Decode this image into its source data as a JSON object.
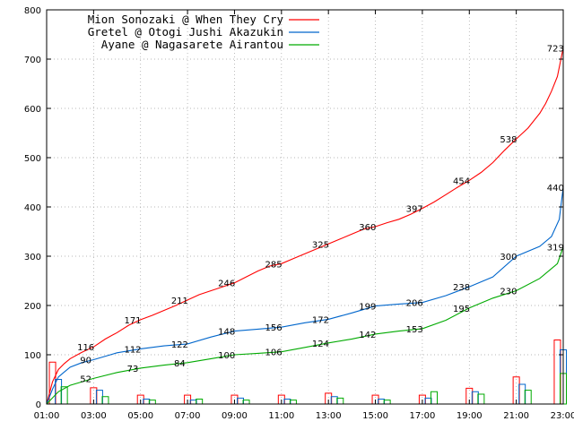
{
  "chart_data": {
    "type": "line",
    "grid": true,
    "legend_placement": "top-left",
    "xlim": [
      "01:00",
      "23:00"
    ],
    "ylim": [
      0,
      800
    ],
    "x_ticks": [
      "01:00",
      "03:00",
      "05:00",
      "07:00",
      "09:00",
      "11:00",
      "13:00",
      "15:00",
      "17:00",
      "19:00",
      "21:00",
      "23:00"
    ],
    "y_ticks": [
      0,
      100,
      200,
      300,
      400,
      500,
      600,
      700,
      800
    ],
    "series": [
      {
        "name": "Mion Sonozaki @ When They Cry",
        "color": "#ff0000",
        "cumulative": [
          [
            "01:00",
            0
          ],
          [
            "01:15",
            45
          ],
          [
            "01:30",
            70
          ],
          [
            "01:45",
            82
          ],
          [
            "02:00",
            92
          ],
          [
            "02:30",
            105
          ],
          [
            "03:00",
            116
          ],
          [
            "03:30",
            132
          ],
          [
            "04:00",
            145
          ],
          [
            "04:30",
            160
          ],
          [
            "05:00",
            171
          ],
          [
            "05:30",
            180
          ],
          [
            "06:00",
            190
          ],
          [
            "06:30",
            200
          ],
          [
            "07:00",
            211
          ],
          [
            "07:30",
            222
          ],
          [
            "08:00",
            230
          ],
          [
            "08:30",
            238
          ],
          [
            "09:00",
            246
          ],
          [
            "09:30",
            258
          ],
          [
            "10:00",
            270
          ],
          [
            "10:30",
            280
          ],
          [
            "11:00",
            285
          ],
          [
            "11:30",
            295
          ],
          [
            "12:00",
            305
          ],
          [
            "12:30",
            315
          ],
          [
            "13:00",
            325
          ],
          [
            "13:30",
            335
          ],
          [
            "14:00",
            345
          ],
          [
            "14:30",
            355
          ],
          [
            "15:00",
            360
          ],
          [
            "15:30",
            368
          ],
          [
            "16:00",
            375
          ],
          [
            "16:30",
            385
          ],
          [
            "17:00",
            397
          ],
          [
            "17:30",
            410
          ],
          [
            "18:00",
            425
          ],
          [
            "18:30",
            440
          ],
          [
            "19:00",
            454
          ],
          [
            "19:30",
            470
          ],
          [
            "20:00",
            490
          ],
          [
            "20:30",
            515
          ],
          [
            "21:00",
            538
          ],
          [
            "21:30",
            560
          ],
          [
            "22:00",
            590
          ],
          [
            "22:15",
            610
          ],
          [
            "22:30",
            635
          ],
          [
            "22:45",
            665
          ],
          [
            "23:00",
            723
          ]
        ],
        "labels": [
          [
            "02:40",
            116,
            "116"
          ],
          [
            "04:40",
            171,
            "171"
          ],
          [
            "06:40",
            211,
            "211"
          ],
          [
            "08:40",
            246,
            "246"
          ],
          [
            "10:40",
            285,
            "285"
          ],
          [
            "12:40",
            325,
            "325"
          ],
          [
            "14:40",
            360,
            "360"
          ],
          [
            "16:40",
            397,
            "397"
          ],
          [
            "18:40",
            454,
            "454"
          ],
          [
            "20:40",
            538,
            "538"
          ],
          [
            "22:40",
            723,
            "723"
          ]
        ],
        "bars": [
          [
            "01:15",
            85
          ],
          [
            "03:00",
            33
          ],
          [
            "05:00",
            18
          ],
          [
            "07:00",
            18
          ],
          [
            "09:00",
            18
          ],
          [
            "11:00",
            18
          ],
          [
            "13:00",
            22
          ],
          [
            "15:00",
            18
          ],
          [
            "17:00",
            18
          ],
          [
            "19:00",
            32
          ],
          [
            "21:00",
            55
          ],
          [
            "22:45",
            130
          ]
        ]
      },
      {
        "name": "Gretel @ Otogi Jushi Akazukin",
        "color": "#0066cc",
        "cumulative": [
          [
            "01:00",
            0
          ],
          [
            "01:15",
            30
          ],
          [
            "01:30",
            55
          ],
          [
            "01:45",
            65
          ],
          [
            "02:00",
            75
          ],
          [
            "02:30",
            84
          ],
          [
            "03:00",
            90
          ],
          [
            "04:00",
            104
          ],
          [
            "05:00",
            112
          ],
          [
            "06:00",
            118
          ],
          [
            "07:00",
            122
          ],
          [
            "08:00",
            136
          ],
          [
            "09:00",
            148
          ],
          [
            "10:00",
            152
          ],
          [
            "11:00",
            156
          ],
          [
            "12:00",
            165
          ],
          [
            "13:00",
            172
          ],
          [
            "14:00",
            185
          ],
          [
            "15:00",
            199
          ],
          [
            "16:00",
            203
          ],
          [
            "17:00",
            206
          ],
          [
            "18:00",
            220
          ],
          [
            "19:00",
            238
          ],
          [
            "20:00",
            258
          ],
          [
            "21:00",
            300
          ],
          [
            "22:00",
            320
          ],
          [
            "22:30",
            340
          ],
          [
            "22:50",
            375
          ],
          [
            "23:00",
            440
          ]
        ],
        "labels": [
          [
            "02:40",
            90,
            "90"
          ],
          [
            "04:40",
            112,
            "112"
          ],
          [
            "06:40",
            122,
            "122"
          ],
          [
            "08:40",
            148,
            "148"
          ],
          [
            "10:40",
            156,
            "156"
          ],
          [
            "12:40",
            172,
            "172"
          ],
          [
            "14:40",
            199,
            "199"
          ],
          [
            "16:40",
            206,
            "206"
          ],
          [
            "18:40",
            238,
            "238"
          ],
          [
            "20:40",
            300,
            "300"
          ],
          [
            "22:40",
            440,
            "440"
          ]
        ],
        "bars": [
          [
            "01:30",
            50
          ],
          [
            "03:15",
            28
          ],
          [
            "05:15",
            10
          ],
          [
            "07:15",
            8
          ],
          [
            "09:15",
            12
          ],
          [
            "11:15",
            10
          ],
          [
            "13:15",
            15
          ],
          [
            "15:15",
            10
          ],
          [
            "17:15",
            12
          ],
          [
            "19:15",
            25
          ],
          [
            "21:15",
            40
          ],
          [
            "23:00",
            110
          ]
        ]
      },
      {
        "name": "Ayane @ Nagasarete Airantou",
        "color": "#00aa00",
        "cumulative": [
          [
            "01:00",
            0
          ],
          [
            "01:30",
            25
          ],
          [
            "02:00",
            38
          ],
          [
            "03:00",
            52
          ],
          [
            "04:00",
            64
          ],
          [
            "05:00",
            73
          ],
          [
            "06:00",
            79
          ],
          [
            "07:00",
            84
          ],
          [
            "08:00",
            92
          ],
          [
            "09:00",
            100
          ],
          [
            "10:00",
            103
          ],
          [
            "11:00",
            106
          ],
          [
            "12:00",
            115
          ],
          [
            "13:00",
            124
          ],
          [
            "14:00",
            132
          ],
          [
            "15:00",
            142
          ],
          [
            "16:00",
            148
          ],
          [
            "17:00",
            153
          ],
          [
            "18:00",
            170
          ],
          [
            "19:00",
            195
          ],
          [
            "20:00",
            215
          ],
          [
            "21:00",
            230
          ],
          [
            "22:00",
            255
          ],
          [
            "22:45",
            285
          ],
          [
            "23:00",
            319
          ]
        ],
        "labels": [
          [
            "02:40",
            52,
            "52"
          ],
          [
            "04:40",
            73,
            "73"
          ],
          [
            "06:40",
            84,
            "84"
          ],
          [
            "08:40",
            100,
            "100"
          ],
          [
            "10:40",
            106,
            "106"
          ],
          [
            "12:40",
            124,
            "124"
          ],
          [
            "14:40",
            142,
            "142"
          ],
          [
            "16:40",
            153,
            "153"
          ],
          [
            "18:40",
            195,
            "195"
          ],
          [
            "20:40",
            230,
            "230"
          ],
          [
            "22:40",
            319,
            "319"
          ]
        ],
        "bars": [
          [
            "01:45",
            35
          ],
          [
            "03:30",
            15
          ],
          [
            "05:30",
            8
          ],
          [
            "07:30",
            10
          ],
          [
            "09:30",
            8
          ],
          [
            "11:30",
            8
          ],
          [
            "13:30",
            12
          ],
          [
            "15:30",
            8
          ],
          [
            "17:30",
            25
          ],
          [
            "19:30",
            20
          ],
          [
            "21:30",
            28
          ],
          [
            "23:00",
            62
          ]
        ]
      }
    ]
  }
}
